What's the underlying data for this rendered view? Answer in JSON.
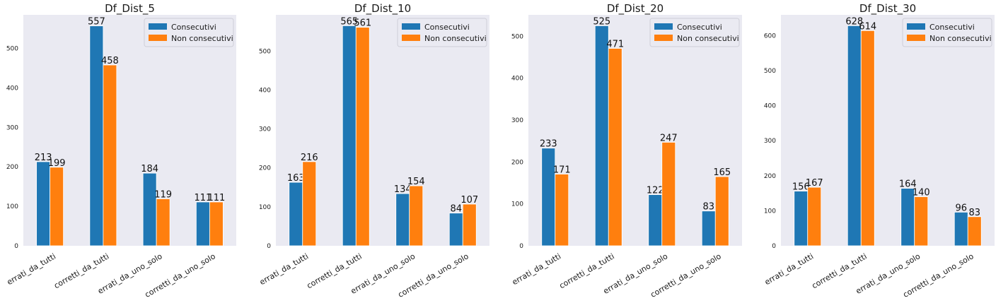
{
  "colors": {
    "consecutivi": "#1f77b4",
    "non_consecutivi": "#ff7f0e",
    "background": "#eaeaf2"
  },
  "chart_data": [
    {
      "type": "bar",
      "title": "Df_Dist_5",
      "categories": [
        "errati_da_tutti",
        "corretti_da_tutti",
        "errati_da_uno_solo",
        "corretti_da_uno_solo"
      ],
      "series": [
        {
          "name": "Consecutivi",
          "values": [
            213,
            557,
            184,
            111
          ]
        },
        {
          "name": "Non consecutivi",
          "values": [
            199,
            458,
            119,
            111
          ]
        }
      ],
      "yticks": [
        0,
        100,
        200,
        300,
        400,
        500
      ],
      "ylim": [
        0,
        585
      ],
      "legend": "top-right",
      "grid": false
    },
    {
      "type": "bar",
      "title": "Df_Dist_10",
      "categories": [
        "errati_da_tutti",
        "corretti_da_tutti",
        "errati_da_uno_solo",
        "corretti_da_uno_solo"
      ],
      "series": [
        {
          "name": "Consecutivi",
          "values": [
            163,
            565,
            134,
            84
          ]
        },
        {
          "name": "Non consecutivi",
          "values": [
            216,
            561,
            154,
            107
          ]
        }
      ],
      "yticks": [
        0,
        100,
        200,
        300,
        400,
        500
      ],
      "ylim": [
        0,
        593
      ],
      "legend": "top-right",
      "grid": false
    },
    {
      "type": "bar",
      "title": "Df_Dist_20",
      "categories": [
        "errati_da_tutti",
        "corretti_da_tutti",
        "errati_da_uno_solo",
        "corretti_da_uno_solo"
      ],
      "series": [
        {
          "name": "Consecutivi",
          "values": [
            233,
            525,
            122,
            83
          ]
        },
        {
          "name": "Non consecutivi",
          "values": [
            171,
            471,
            247,
            165
          ]
        }
      ],
      "yticks": [
        0,
        100,
        200,
        300,
        400,
        500
      ],
      "ylim": [
        0,
        551
      ],
      "legend": "top-right",
      "grid": false
    },
    {
      "type": "bar",
      "title": "Df_Dist_30",
      "categories": [
        "errati_da_tutti",
        "corretti_da_tutti",
        "errati_da_uno_solo",
        "corretti_da_uno_solo"
      ],
      "series": [
        {
          "name": "Consecutivi",
          "values": [
            156,
            628,
            164,
            96
          ]
        },
        {
          "name": "Non consecutivi",
          "values": [
            167,
            614,
            140,
            83
          ]
        }
      ],
      "yticks": [
        0,
        100,
        200,
        300,
        400,
        500,
        600
      ],
      "ylim": [
        0,
        659
      ],
      "legend": "top-right",
      "grid": false
    }
  ]
}
